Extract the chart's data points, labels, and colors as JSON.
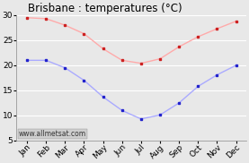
{
  "title": "Brisbane : temperatures (°C)",
  "months": [
    "Jan",
    "Feb",
    "Mar",
    "Apr",
    "May",
    "Jun",
    "Jul",
    "Aug",
    "Sep",
    "Oct",
    "Nov",
    "Dec"
  ],
  "high_temps": [
    29.5,
    29.3,
    28.0,
    26.3,
    23.3,
    21.0,
    20.4,
    21.3,
    23.7,
    25.7,
    27.3,
    28.8
  ],
  "low_temps": [
    21.0,
    21.0,
    19.5,
    17.0,
    13.7,
    11.0,
    9.3,
    10.1,
    12.5,
    15.8,
    18.1,
    20.0
  ],
  "high_line_color": "#ffaaaa",
  "low_line_color": "#aaaaff",
  "high_dot_color": "#cc2222",
  "low_dot_color": "#2222cc",
  "bg_color": "#e8e8e8",
  "grid_color": "#ffffff",
  "ylim": [
    5,
    30
  ],
  "yticks": [
    5,
    10,
    15,
    20,
    25,
    30
  ],
  "watermark": "www.allmetsat.com",
  "title_fontsize": 8.5,
  "tick_fontsize": 6.5,
  "watermark_fontsize": 5.5
}
